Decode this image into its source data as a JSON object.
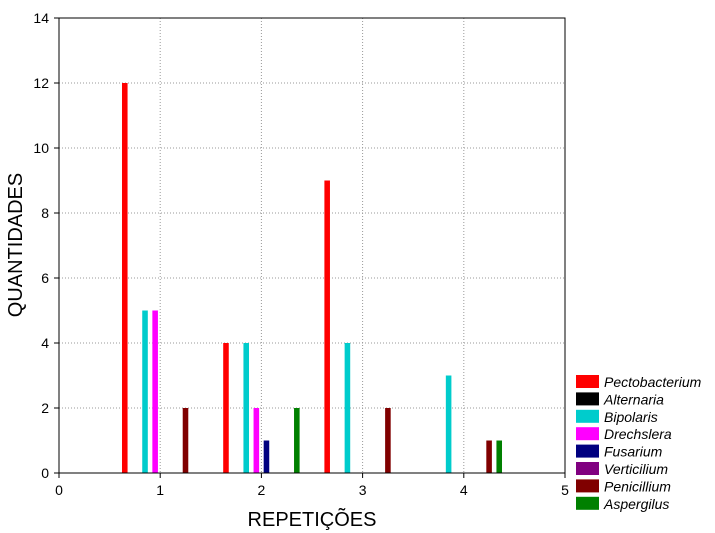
{
  "chart_data": {
    "type": "bar",
    "title": "",
    "xlabel": "REPETIÇÕES",
    "ylabel": "QUANTIDADES",
    "xlim": [
      0,
      5
    ],
    "ylim": [
      0,
      14
    ],
    "x_ticks": [
      0,
      1,
      2,
      3,
      4,
      5
    ],
    "y_ticks": [
      0,
      2,
      4,
      6,
      8,
      10,
      12,
      14
    ],
    "categories": [
      "1",
      "2",
      "3",
      "4"
    ],
    "grid": true,
    "legend_position": "bottom-right",
    "series": [
      {
        "name": "Pectobacterium",
        "color": "#ff0000",
        "values": [
          12,
          4,
          9,
          0
        ]
      },
      {
        "name": "Alternaria",
        "color": "#000000",
        "values": [
          0,
          0,
          0,
          0
        ]
      },
      {
        "name": "Bipolaris",
        "color": "#00cccc",
        "values": [
          5,
          4,
          4,
          3
        ]
      },
      {
        "name": "Drechslera",
        "color": "#ff00ff",
        "values": [
          5,
          2,
          0,
          0
        ]
      },
      {
        "name": "Fusarium",
        "color": "#000080",
        "values": [
          0,
          1,
          0,
          0
        ]
      },
      {
        "name": "Verticilium",
        "color": "#800080",
        "values": [
          0,
          0,
          0,
          0
        ]
      },
      {
        "name": "Penicillium",
        "color": "#800000",
        "values": [
          2,
          0,
          2,
          1
        ]
      },
      {
        "name": "Aspergilus",
        "color": "#008000",
        "values": [
          0,
          2,
          0,
          1
        ]
      }
    ]
  }
}
